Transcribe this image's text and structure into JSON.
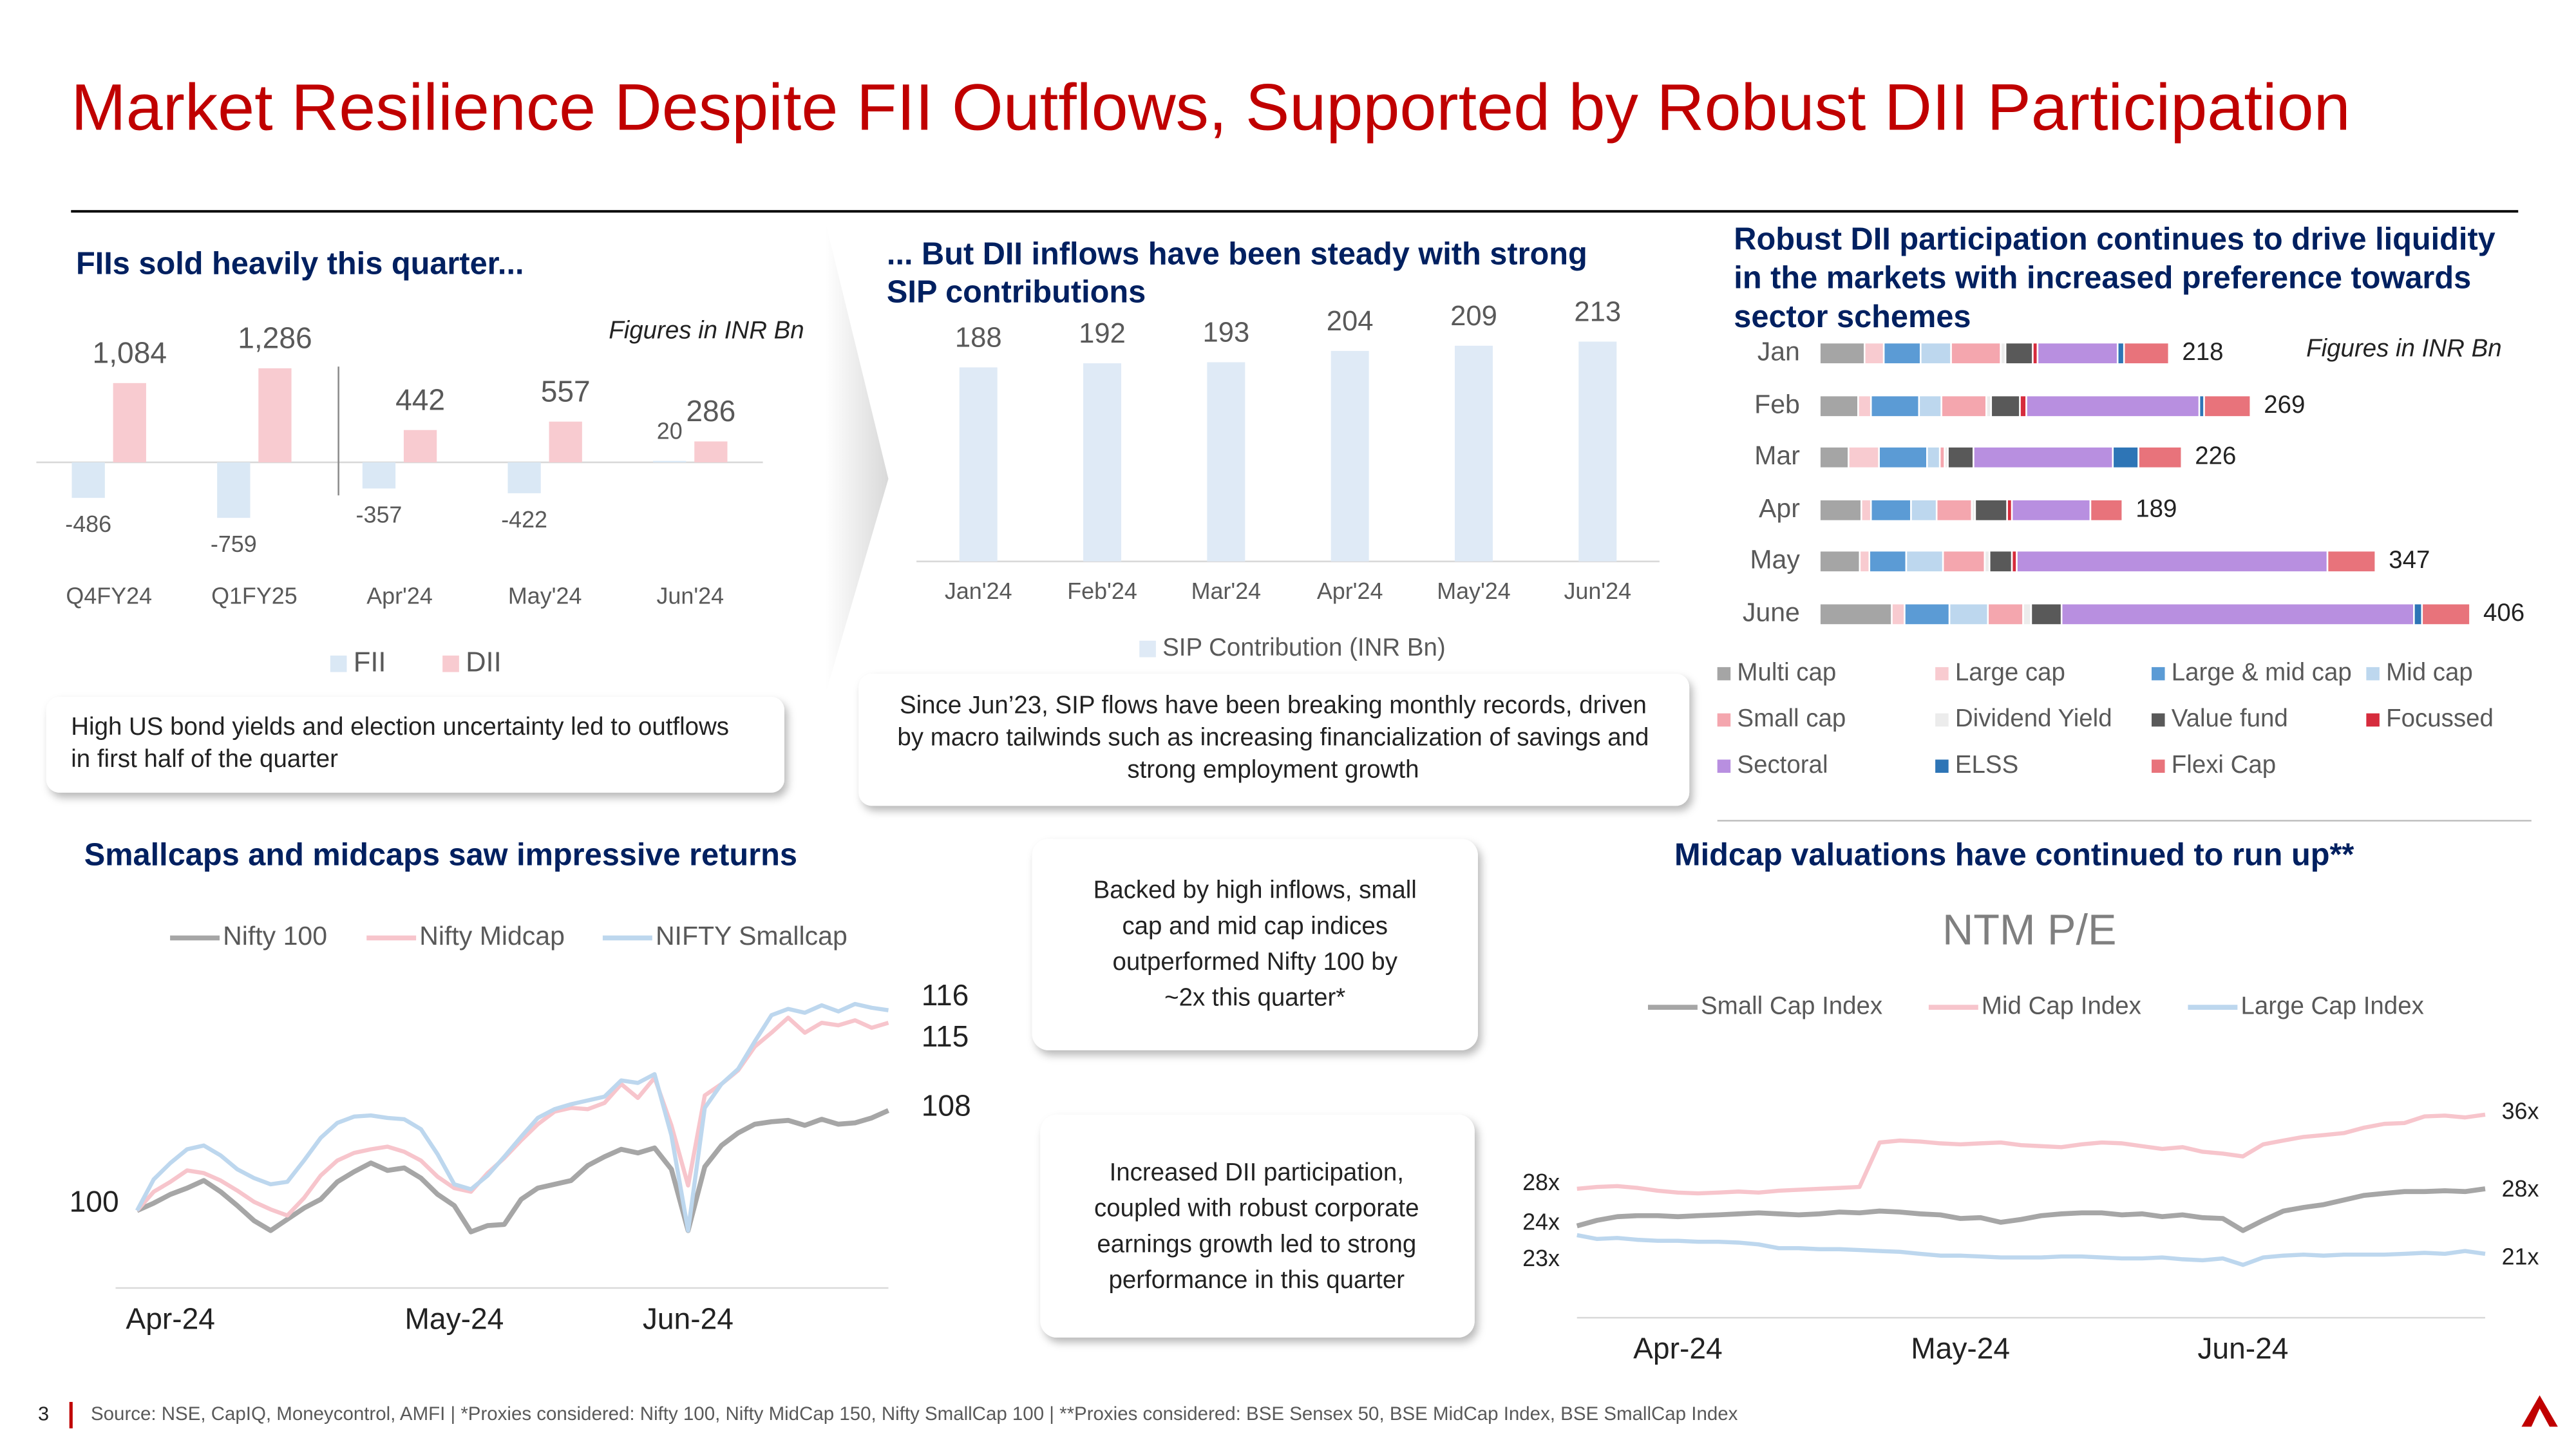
{
  "title": "Market Resilience Despite FII Outflows, Supported by Robust DII Participation",
  "callouts": [
    [
      "High US bond yields and election uncertainty led to outflows",
      "in first half of the quarter"
    ],
    [
      "Since Jun’23, SIP flows have been breaking monthly records, driven",
      "by macro tailwinds such as increasing financialization of savings and",
      "strong employment growth"
    ],
    [
      "Backed by high inflows, small",
      "cap and mid cap indices",
      "outperformed Nifty 100 by",
      "~2x this quarter*"
    ],
    [
      "Increased DII participation,",
      "coupled with robust corporate",
      "earnings growth led to strong",
      "performance in this quarter"
    ]
  ],
  "footer": {
    "page": "3",
    "source": "Source: NSE, CapIQ, Moneycontrol, AMFI | *Proxies considered: Nifty 100, Nifty MidCap 150, Nifty SmallCap 100 | **Proxies considered: BSE Sensex 50, BSE MidCap Index, BSE SmallCap Index"
  },
  "chart_data": [
    {
      "type": "bar",
      "title": "FIIs sold heavily this quarter...",
      "note": "Figures in INR Bn",
      "categories": [
        "Q4FY24",
        "Q1FY25",
        "Apr'24",
        "May'24",
        "Jun'24"
      ],
      "series": [
        {
          "name": "FII",
          "color": "#dae8f5",
          "values": [
            -486,
            -759,
            -357,
            -422,
            20
          ]
        },
        {
          "name": "DII",
          "color": "#f8cbd0",
          "values": [
            1084,
            1286,
            442,
            557,
            286
          ],
          "value_labels": [
            "1,084",
            "1,286",
            "442",
            "557",
            "286"
          ]
        }
      ]
    },
    {
      "type": "bar",
      "title": [
        "... But DII inflows have been steady with strong",
        "SIP contributions"
      ],
      "categories": [
        "Jan'24",
        "Feb'24",
        "Mar'24",
        "Apr'24",
        "May'24",
        "Jun'24"
      ],
      "series": [
        {
          "name": "SIP Contribution (INR Bn)",
          "color": "#dfeaf6",
          "values": [
            188,
            192,
            193,
            204,
            209,
            213
          ]
        }
      ]
    },
    {
      "type": "hbar",
      "title": [
        "Robust DII participation continues to drive liquidity",
        "in the markets with increased preference towards",
        "sector schemes"
      ],
      "note": "Figures in INR Bn",
      "categories": [
        "Jan",
        "Feb",
        "Mar",
        "Apr",
        "May",
        "June"
      ],
      "totals": [
        218,
        269,
        226,
        189,
        347,
        406
      ],
      "series": [
        {
          "name": "Multi cap",
          "color": "#a5a5a5",
          "values": [
            28,
            24,
            18,
            26,
            25,
            45
          ]
        },
        {
          "name": "Large cap",
          "color": "#f8cbd0",
          "values": [
            12,
            8,
            19,
            6,
            6,
            8
          ]
        },
        {
          "name": "Large & mid cap",
          "color": "#5b9bd5",
          "values": [
            23,
            30,
            30,
            25,
            23,
            28
          ]
        },
        {
          "name": "Mid cap",
          "color": "#bdd7ee",
          "values": [
            19,
            14,
            8,
            16,
            23,
            24
          ]
        },
        {
          "name": "Small cap",
          "color": "#f4a6ae",
          "values": [
            31,
            28,
            3,
            22,
            26,
            22
          ]
        },
        {
          "name": "Dividend Yield",
          "color": "#ececec",
          "values": [
            3,
            3,
            2,
            2,
            3,
            5
          ]
        },
        {
          "name": "Value fund",
          "color": "#595959",
          "values": [
            17,
            18,
            16,
            20,
            14,
            19
          ]
        },
        {
          "name": "Focussed",
          "color": "#d62c3d",
          "values": [
            3,
            4,
            0,
            3,
            3,
            0
          ]
        },
        {
          "name": "Sectoral",
          "color": "#b88fe0",
          "values": [
            50,
            108,
            87,
            49,
            194,
            220
          ]
        },
        {
          "name": "ELSS",
          "color": "#2e75b6",
          "values": [
            4,
            3,
            16,
            0,
            0,
            5
          ]
        },
        {
          "name": "Flexi Cap",
          "color": "#e8737b",
          "values": [
            28,
            29,
            27,
            20,
            30,
            30
          ]
        }
      ]
    },
    {
      "type": "line",
      "title": "Smallcaps and midcaps saw impressive returns",
      "categories": [
        null,
        null,
        "Apr-24",
        null,
        null,
        null,
        null,
        null,
        null,
        null,
        null,
        null,
        null,
        null,
        null,
        null,
        null,
        null,
        null,
        "May-24",
        null,
        null,
        null,
        null,
        null,
        null,
        null,
        null,
        null,
        null,
        null,
        null,
        null,
        "Jun-24",
        null,
        null,
        null,
        null,
        null,
        null,
        null,
        null,
        null,
        null,
        null,
        null
      ],
      "series": [
        {
          "name": "Nifty 100",
          "color": "#a6a6a6",
          "values": [
            100,
            100.6,
            101.3,
            101.8,
            102.4,
            101.5,
            100.4,
            99.2,
            98.4,
            99.3,
            100.2,
            100.9,
            102.3,
            103.1,
            103.8,
            103.2,
            103.4,
            102.6,
            101.3,
            100.4,
            98.3,
            98.8,
            98.9,
            100.9,
            101.8,
            102.1,
            102.4,
            103.6,
            104.3,
            104.9,
            104.6,
            105.0,
            103.3,
            98.4,
            103.5,
            105.2,
            106.2,
            106.9,
            107.1,
            107.2,
            106.8,
            107.3,
            106.9,
            107.0,
            107.4,
            108
          ]
        },
        {
          "name": "Nifty Midcap",
          "color": "#f7c5cc",
          "values": [
            100,
            101.5,
            102.3,
            103.2,
            103.0,
            102.4,
            101.6,
            100.7,
            100.1,
            99.6,
            101.0,
            102.8,
            104.0,
            104.6,
            104.9,
            105.1,
            104.7,
            104.0,
            102.7,
            101.8,
            101.5,
            103.0,
            104.2,
            105.6,
            106.9,
            107.9,
            108.2,
            108.1,
            108.6,
            110.1,
            109.0,
            110.6,
            106.8,
            102.0,
            109.2,
            110.1,
            111.2,
            113.1,
            114.2,
            115.4,
            114.2,
            115.0,
            114.8,
            115.2,
            114.6,
            115
          ]
        },
        {
          "name": "NIFTY Smallcap",
          "color": "#bdd7ee",
          "values": [
            100,
            102.5,
            103.8,
            104.9,
            105.2,
            104.4,
            103.3,
            102.6,
            102.1,
            102.3,
            104.0,
            105.8,
            107.0,
            107.5,
            107.6,
            107.4,
            107.3,
            106.5,
            104.5,
            102.1,
            101.7,
            102.8,
            104.3,
            105.9,
            107.4,
            108.1,
            108.5,
            108.8,
            109.1,
            110.4,
            110.2,
            110.9,
            106.0,
            98.4,
            108.2,
            110.1,
            111.3,
            113.5,
            115.6,
            116.1,
            115.8,
            116.4,
            115.9,
            116.5,
            116.2,
            116
          ]
        }
      ]
    },
    {
      "type": "line",
      "title": "Midcap valuations have continued to run up**",
      "subtitle": "NTM P/E",
      "categories": [
        null,
        null,
        null,
        null,
        null,
        "Apr-24",
        null,
        null,
        null,
        null,
        null,
        null,
        null,
        null,
        null,
        null,
        null,
        null,
        null,
        "May-24",
        null,
        null,
        null,
        null,
        null,
        null,
        null,
        null,
        null,
        null,
        null,
        null,
        null,
        "Jun-24",
        null,
        null,
        null,
        null,
        null,
        null,
        null,
        null,
        null,
        null,
        null,
        null
      ],
      "series": [
        {
          "name": "Small Cap Index",
          "color": "#a6a6a6",
          "values": [
            24,
            24.6,
            25.0,
            25.1,
            25.1,
            25.0,
            25.1,
            25.2,
            25.3,
            25.4,
            25.3,
            25.2,
            25.3,
            25.5,
            25.4,
            25.6,
            25.5,
            25.3,
            25.2,
            24.8,
            24.9,
            24.4,
            24.7,
            25.1,
            25.3,
            25.4,
            25.4,
            25.2,
            25.3,
            25.0,
            25.2,
            24.9,
            24.8,
            23.5,
            24.6,
            25.6,
            26.0,
            26.3,
            26.8,
            27.3,
            27.5,
            27.7,
            27.7,
            27.8,
            27.7,
            28
          ],
          "value_labels": [
            "24x",
            null,
            null,
            null,
            null,
            null,
            null,
            null,
            null,
            null,
            null,
            null,
            null,
            null,
            null,
            null,
            null,
            null,
            null,
            null,
            null,
            null,
            null,
            null,
            null,
            null,
            null,
            null,
            null,
            null,
            null,
            null,
            null,
            null,
            null,
            null,
            null,
            null,
            null,
            null,
            null,
            null,
            null,
            null,
            null,
            "28x"
          ]
        },
        {
          "name": "Mid Cap Index",
          "color": "#f7c5cc",
          "values": [
            28,
            28.2,
            28.3,
            28.1,
            27.8,
            27.6,
            27.5,
            27.6,
            27.7,
            27.6,
            27.8,
            27.9,
            28.0,
            28.1,
            28.2,
            33.0,
            33.2,
            33.1,
            32.9,
            32.8,
            32.9,
            33.0,
            32.7,
            32.6,
            32.5,
            32.8,
            33.0,
            32.9,
            32.6,
            32.3,
            32.5,
            32.0,
            31.8,
            31.5,
            32.8,
            33.2,
            33.6,
            33.8,
            34.0,
            34.6,
            35.0,
            35.1,
            35.8,
            35.9,
            35.7,
            36
          ],
          "value_labels": [
            "28x",
            null,
            null,
            null,
            null,
            null,
            null,
            null,
            null,
            null,
            null,
            null,
            null,
            null,
            null,
            null,
            null,
            null,
            null,
            null,
            null,
            null,
            null,
            null,
            null,
            null,
            null,
            null,
            null,
            null,
            null,
            null,
            null,
            null,
            null,
            null,
            null,
            null,
            null,
            null,
            null,
            null,
            null,
            null,
            null,
            "36x"
          ]
        },
        {
          "name": "Large Cap Index",
          "color": "#bdd7ee",
          "values": [
            23,
            22.6,
            22.7,
            22.5,
            22.4,
            22.4,
            22.3,
            22.3,
            22.2,
            22.0,
            21.6,
            21.6,
            21.5,
            21.5,
            21.4,
            21.3,
            21.2,
            21.0,
            20.8,
            20.8,
            20.7,
            20.6,
            20.6,
            20.6,
            20.7,
            20.7,
            20.6,
            20.5,
            20.5,
            20.6,
            20.4,
            20.3,
            20.5,
            19.8,
            20.6,
            20.8,
            20.9,
            20.8,
            20.9,
            20.9,
            20.9,
            21.0,
            21.1,
            21.0,
            21.3,
            21
          ],
          "value_labels": [
            "23x",
            null,
            null,
            null,
            null,
            null,
            null,
            null,
            null,
            null,
            null,
            null,
            null,
            null,
            null,
            null,
            null,
            null,
            null,
            null,
            null,
            null,
            null,
            null,
            null,
            null,
            null,
            null,
            null,
            null,
            null,
            null,
            null,
            null,
            null,
            null,
            null,
            null,
            null,
            null,
            null,
            null,
            null,
            null,
            null,
            "21x"
          ]
        }
      ]
    }
  ]
}
